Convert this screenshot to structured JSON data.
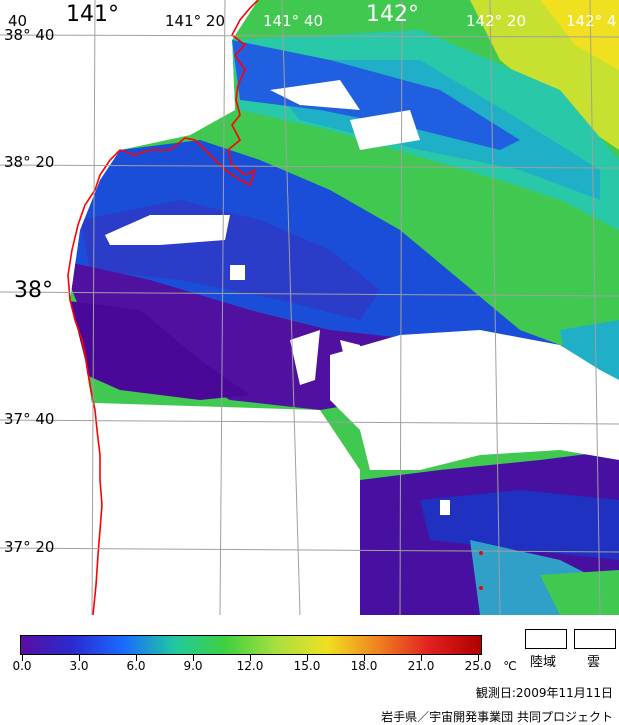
{
  "map": {
    "longitude_labels": [
      "141°",
      "141° 20",
      "141° 40",
      "142°",
      "142° 20",
      "142° 4"
    ],
    "latitude_labels": [
      "38° 40",
      "38° 20",
      "38°",
      "37° 40",
      "37° 20"
    ],
    "corner_label": "40",
    "coastline_color": "#ff0000",
    "grid_color": "#a0a0a0"
  },
  "legend": {
    "colorbar_stops": [
      "#5a0da0",
      "#2a2ad0",
      "#1a6aff",
      "#20c8a0",
      "#40d040",
      "#a8e040",
      "#f0e020",
      "#f08020",
      "#e02020",
      "#b00000"
    ],
    "ticks": [
      "0.0",
      "3.0",
      "6.0",
      "9.0",
      "12.0",
      "15.0",
      "18.0",
      "21.0",
      "25.0"
    ],
    "unit": "℃",
    "land_label": "陸域",
    "cloud_label": "雲"
  },
  "observation_date": "観測日:2009年11月11日",
  "credits": "岩手県／宇宙開発事業団  共同プロジェクト"
}
